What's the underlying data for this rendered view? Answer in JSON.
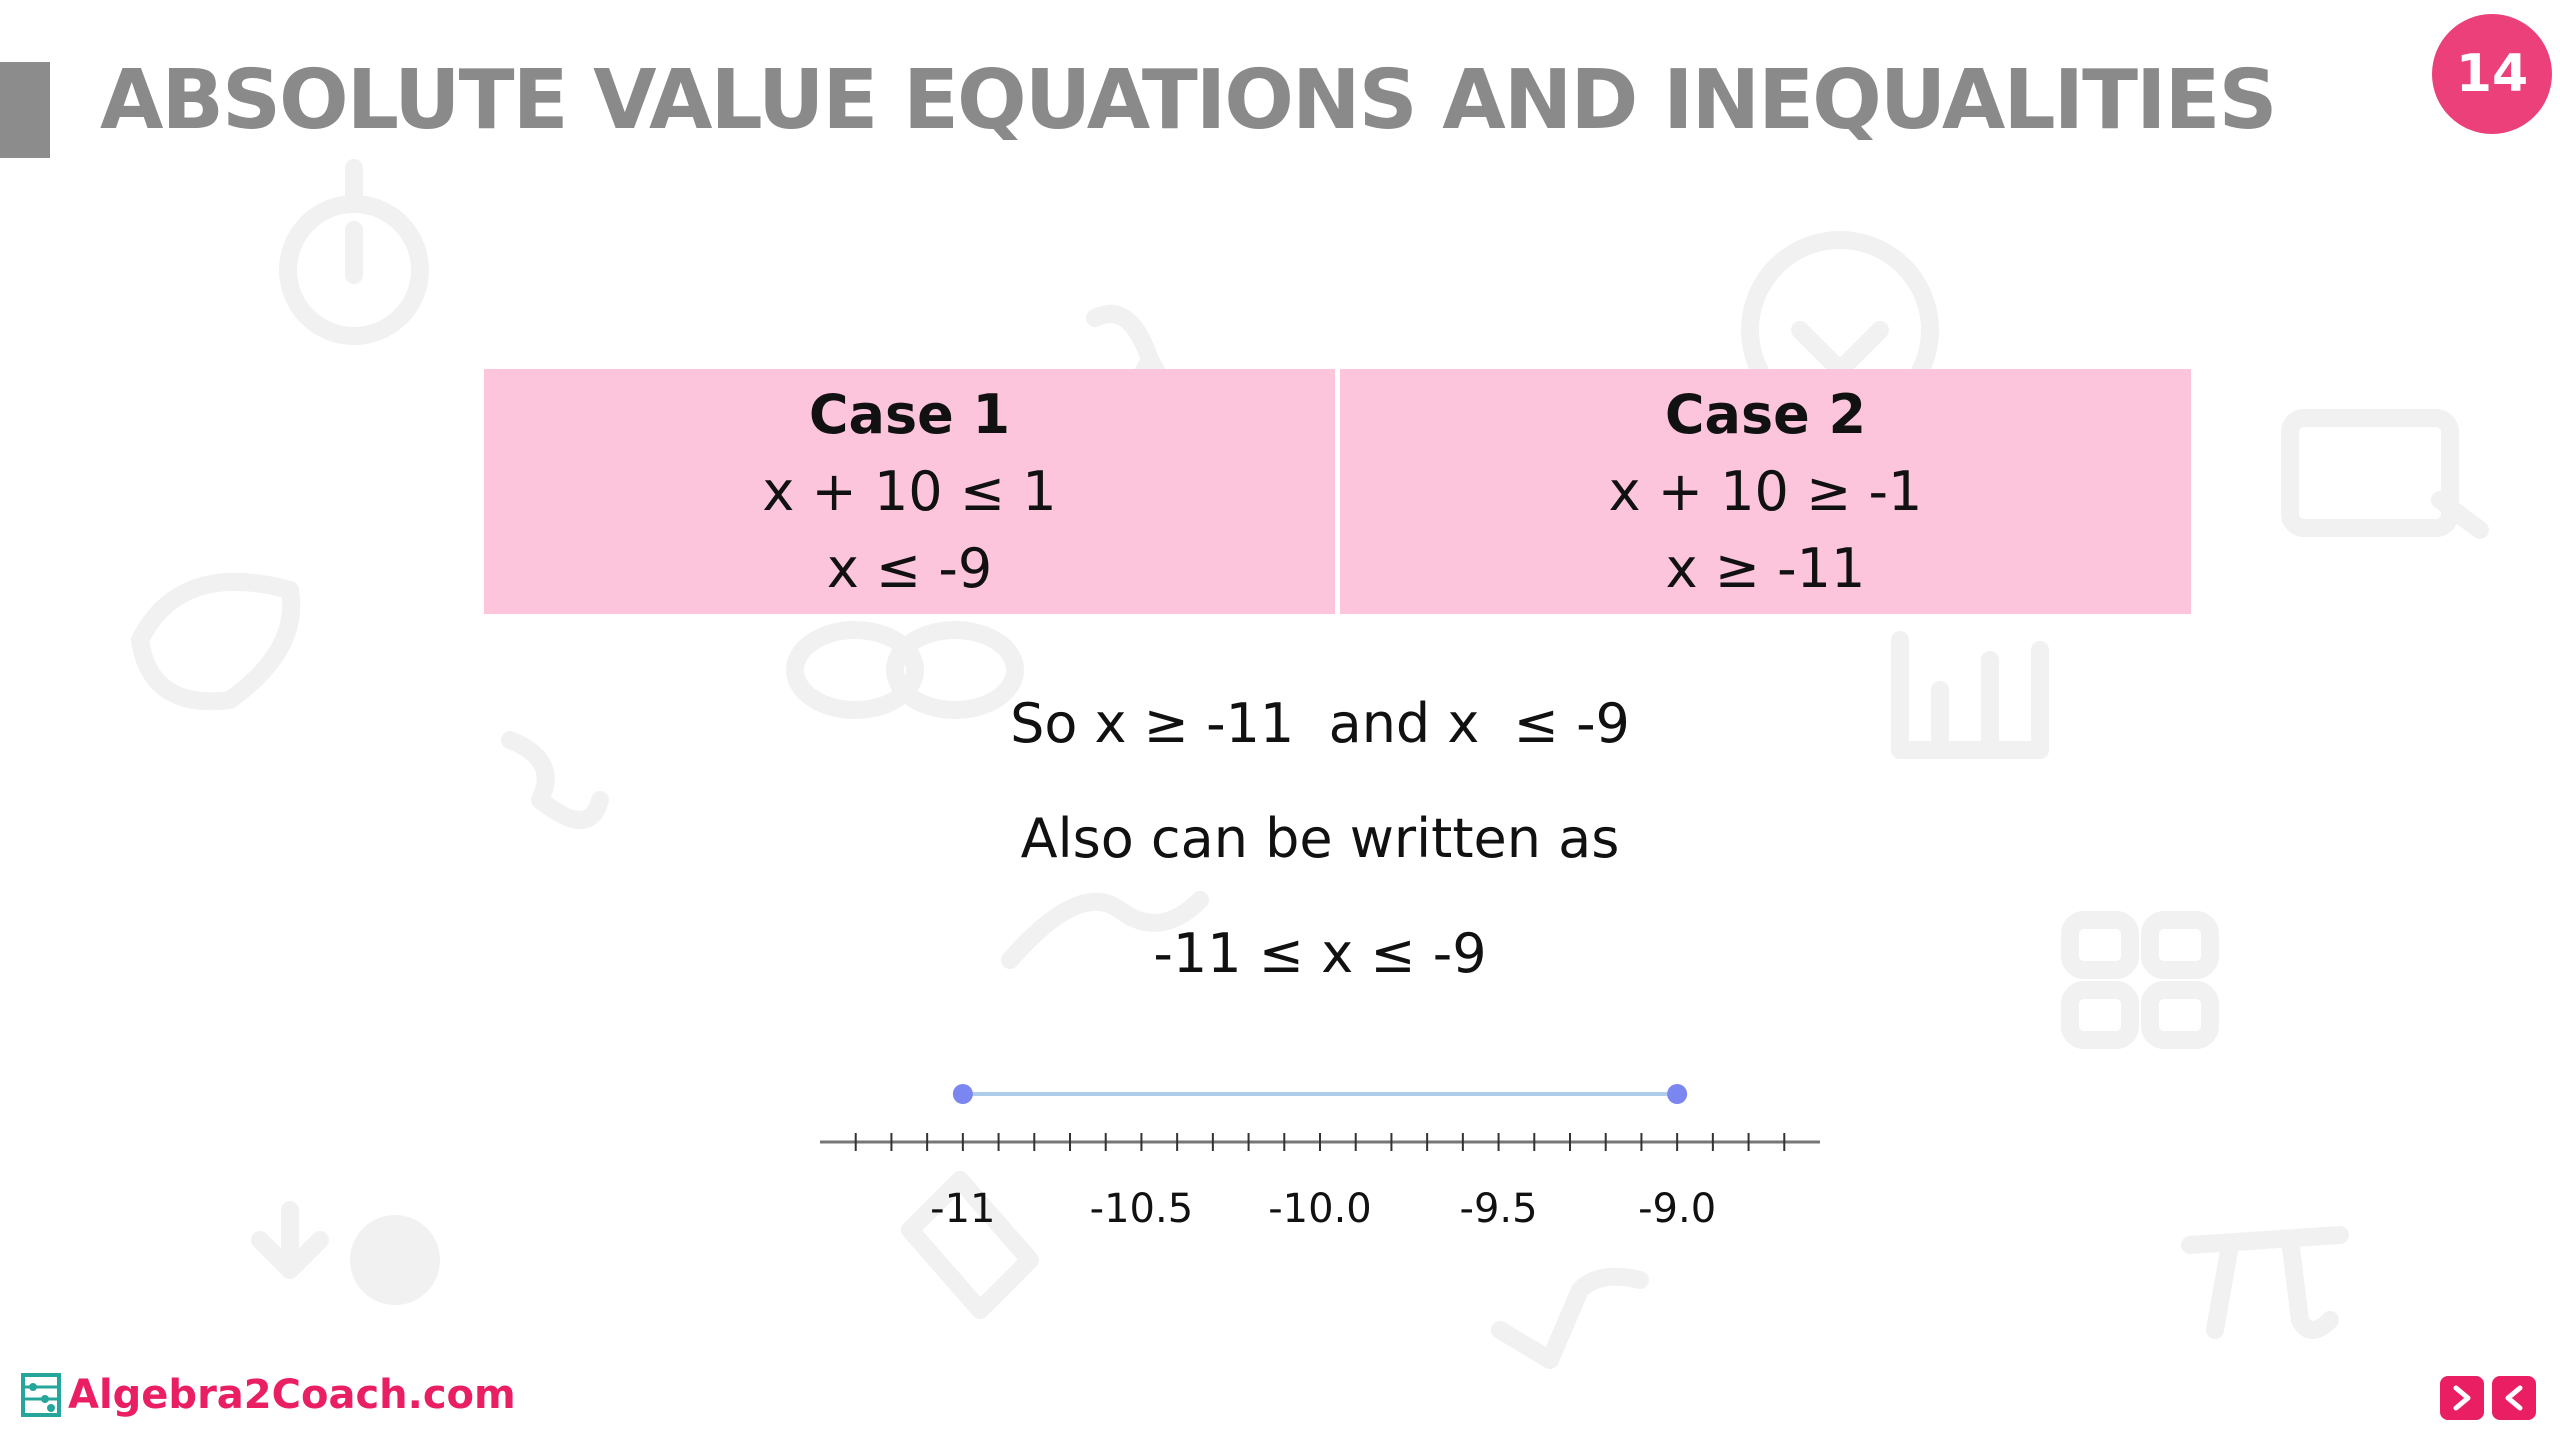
{
  "slide": {
    "title": "ABSOLUTE VALUE EQUATIONS AND INEQUALITIES",
    "page_number": "14"
  },
  "cases": [
    {
      "title": "Case 1",
      "line1": "x + 10 ≤ 1",
      "line2": "x ≤ -9"
    },
    {
      "title": "Case 2",
      "line1": "x + 10 ≥ -1",
      "line2": "x ≥ -11"
    }
  ],
  "statements": {
    "combined": "So x ≥ -11  and x  ≤ -9",
    "also": "Also can be written as",
    "compound": "-11 ≤ x ≤ -9"
  },
  "number_line": {
    "tick_labels": [
      "-11",
      "-10.5",
      "-10.0",
      "-9.5",
      "-9.0"
    ],
    "tick_values": [
      -11,
      -10.5,
      -10.0,
      -9.5,
      -9.0
    ],
    "range": [
      -11.4,
      -8.6
    ],
    "minor_step": 0.1,
    "interval": {
      "from": -11,
      "to": -9,
      "closed_left": true,
      "closed_right": true
    },
    "interval_color": "#aecdea",
    "endpoint_color": "#7b86f0"
  },
  "footer": {
    "brand": "Algebra2Coach.com",
    "brand_icon": "abacus-icon",
    "nav_icons": [
      "next-arrow-icon",
      "prev-arrow-icon"
    ]
  },
  "colors": {
    "accent": "#ec407a",
    "case_fill": "#fcc5dc",
    "title_gray": "#8a8a8a"
  }
}
